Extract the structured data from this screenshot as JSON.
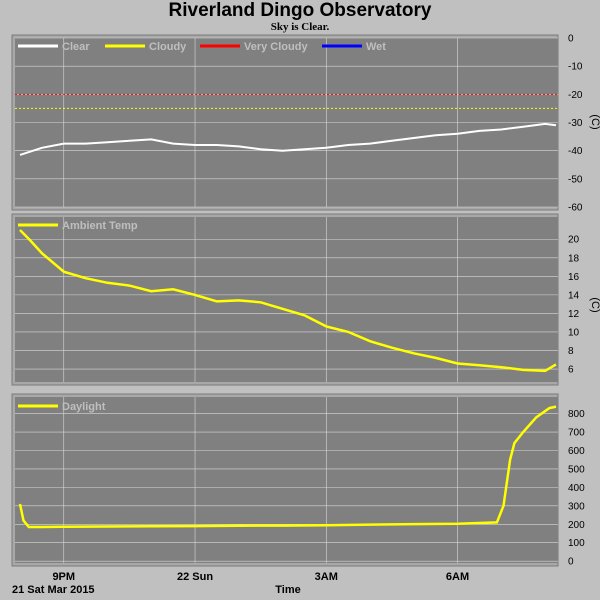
{
  "title": "Riverland Dingo Observatory",
  "subtitle": "Sky is Clear.",
  "date_label": "21 Sat Mar 2015",
  "xlabel": "Time",
  "colors": {
    "background": "#c0c0c0",
    "plot_bg": "#808080",
    "clear": "#ffffff",
    "cloudy": "#ffff00",
    "very_cloudy": "#ff0000",
    "wet": "#0000ff",
    "grid": "#d8d8d8"
  },
  "x_ticks": [
    "9PM",
    "22 Sun",
    "3AM",
    "6AM"
  ],
  "chart_data": [
    {
      "type": "line",
      "name": "sky",
      "unit": "(C)",
      "ylim": [
        -60,
        0
      ],
      "y_ticks": [
        "0",
        "-10",
        "-20",
        "-30",
        "-40",
        "-50",
        "-60"
      ],
      "thresholds": [
        {
          "legend": "Very Cloudy",
          "value": -20,
          "color": "#ff0000"
        },
        {
          "legend": "Cloudy",
          "value": -25,
          "color": "#ffff00"
        }
      ],
      "legend": [
        {
          "label": "Clear",
          "color": "#ffffff"
        },
        {
          "label": "Cloudy",
          "color": "#ffff00"
        },
        {
          "label": "Very Cloudy",
          "color": "#ff0000"
        },
        {
          "label": "Wet",
          "color": "#0000ff"
        }
      ],
      "x": [
        0,
        0.5,
        1,
        1.5,
        2,
        2.5,
        3,
        3.5,
        4,
        4.5,
        5,
        5.5,
        6,
        6.5,
        7,
        7.5,
        8,
        8.5,
        9,
        9.5,
        10,
        10.5,
        11,
        11.5,
        12,
        12.25
      ],
      "values": [
        -41.5,
        -39,
        -37.5,
        -37.5,
        -37,
        -36.5,
        -36,
        -37.5,
        -38,
        -38,
        -38.5,
        -39.5,
        -40,
        -39.5,
        -39,
        -38,
        -37.5,
        -36.5,
        -35.5,
        -34.5,
        -34,
        -33,
        -32.5,
        -31.5,
        -30.5,
        -31
      ]
    },
    {
      "type": "line",
      "name": "ambient",
      "unit": "(C)",
      "legend": [
        {
          "label": "Ambient Temp",
          "color": "#ffff00"
        }
      ],
      "ylim": [
        4.6,
        22.4
      ],
      "y_ticks": [
        "20",
        "18",
        "16",
        "14",
        "12",
        "10",
        "8",
        "6"
      ],
      "x": [
        0,
        0.25,
        0.5,
        1,
        1.5,
        2,
        2.5,
        3,
        3.5,
        4,
        4.5,
        5,
        5.5,
        6,
        6.5,
        7,
        7.5,
        8,
        8.5,
        9,
        9.5,
        10,
        10.5,
        11,
        11.5,
        12,
        12.25
      ],
      "values": [
        21,
        19.8,
        18.5,
        16.5,
        15.8,
        15.3,
        15,
        14.4,
        14.6,
        14,
        13.3,
        13.4,
        13.2,
        12.5,
        11.8,
        10.6,
        10,
        9,
        8.3,
        7.7,
        7.2,
        6.6,
        6.4,
        6.2,
        5.9,
        5.8,
        6.5
      ]
    },
    {
      "type": "line",
      "name": "daylight",
      "legend": [
        {
          "label": "Daylight",
          "color": "#ffff00"
        }
      ],
      "ylim": [
        -10,
        890
      ],
      "y_ticks": [
        "800",
        "700",
        "600",
        "500",
        "400",
        "300",
        "200",
        "100",
        "0"
      ],
      "x": [
        0,
        0.08,
        0.2,
        0.5,
        1,
        2,
        3,
        4,
        5,
        6,
        7,
        8,
        9,
        10,
        10.9,
        11.05,
        11.2,
        11.3,
        11.5,
        11.8,
        12.1,
        12.25
      ],
      "values": [
        310,
        220,
        185,
        185,
        187,
        188,
        189,
        190,
        192,
        193,
        195,
        198,
        201,
        203,
        210,
        300,
        550,
        640,
        700,
        780,
        830,
        838
      ]
    }
  ]
}
